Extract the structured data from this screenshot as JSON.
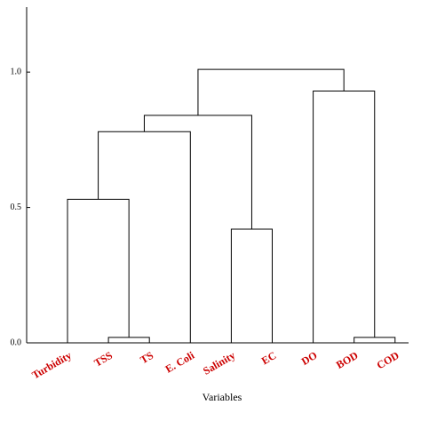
{
  "chart_data": {
    "type": "dendrogram",
    "x_label": "Variables",
    "categories": [
      "Turbidity",
      "TSS",
      "TS",
      "E. Coli",
      "Salinity",
      "EC",
      "DO",
      "BOD",
      "COD"
    ],
    "label_color": "#cc0000",
    "color": "#000000",
    "merges": [
      {
        "left": 1,
        "right": 2,
        "height": 0.02
      },
      {
        "left": 7,
        "right": 8,
        "height": 0.02
      },
      {
        "left": 4,
        "right": 5,
        "height": 0.42
      },
      {
        "left": 0,
        "right": 9,
        "height": 0.53
      },
      {
        "left": 12,
        "right": 3,
        "height": 0.78
      },
      {
        "left": 13,
        "right": 11,
        "height": 0.84
      },
      {
        "left": 6,
        "right": 10,
        "height": 0.93
      },
      {
        "left": 14,
        "right": 15,
        "height": 1.01
      }
    ],
    "ylim": [
      0,
      1.24
    ],
    "yticks": [
      {
        "value": 0,
        "label": "0.0"
      },
      {
        "value": 0.5,
        "label": "0.5"
      },
      {
        "value": 1,
        "label": "1.0"
      }
    ]
  }
}
